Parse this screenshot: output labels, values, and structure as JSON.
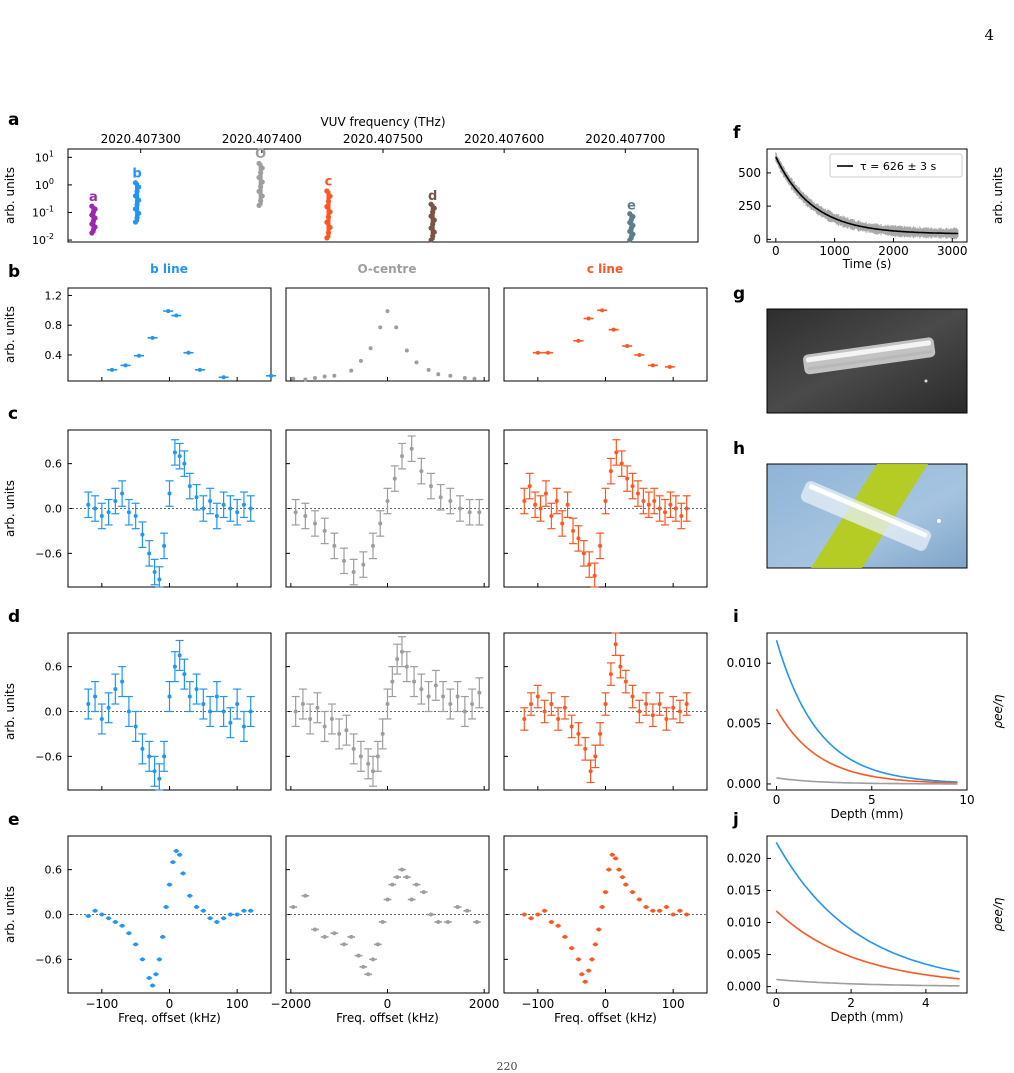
{
  "page": {
    "number": "4",
    "footer": "220"
  },
  "colors": {
    "b": "#2196F3",
    "O": "#9E9E9E",
    "c": "#FF5722",
    "a": "#9C27B0",
    "d": "#795548",
    "e": "#607D8B",
    "fit": "#000000",
    "photo_dark": "#3a3a3a"
  },
  "panel_letters": {
    "a": "a",
    "b": "b",
    "c": "c",
    "d": "d",
    "e": "e",
    "f": "f",
    "g": "g",
    "h": "h",
    "i": "i",
    "j": "j"
  },
  "column_titles": [
    "b line",
    "O-centre",
    "c line"
  ],
  "chart_data": [
    {
      "id": "a",
      "type": "scatter",
      "xlabel": "VUV frequency (THz)",
      "ylabel": "arb. units",
      "yscale": "log",
      "xlim": [
        2020.40724,
        2020.40776
      ],
      "ylim": [
        0.0085,
        20
      ],
      "xticks": [
        "2020.407300",
        "2020.407400",
        "2020.407500",
        "2020.407600",
        "2020.407700"
      ],
      "xtick_values": [
        2020.4073,
        2020.4074,
        2020.4075,
        2020.4076,
        2020.4077
      ],
      "yticks": [
        "10^{-2}",
        "10^{-1}",
        "10^{0}",
        "10^{1}"
      ],
      "ytick_values": [
        0.01,
        0.1,
        1,
        10
      ],
      "series": [
        {
          "name": "a",
          "color": "a",
          "x": 2020.407261,
          "lo": 0.018,
          "hi": 0.17,
          "label_at": 0.22
        },
        {
          "name": "b",
          "color": "b",
          "x": 2020.407297,
          "lo": 0.045,
          "hi": 1.2,
          "label_at": 1.6
        },
        {
          "name": "O",
          "color": "O",
          "x": 2020.407399,
          "lo": 0.18,
          "hi": 6.0,
          "label_at": 8.0
        },
        {
          "name": "c",
          "color": "c",
          "x": 2020.407455,
          "lo": 0.012,
          "hi": 0.6,
          "label_at": 0.8
        },
        {
          "name": "d",
          "color": "d",
          "x": 2020.407541,
          "lo": 0.01,
          "hi": 0.2,
          "label_at": 0.24
        },
        {
          "name": "e",
          "color": "e",
          "x": 2020.407705,
          "lo": 0.01,
          "hi": 0.09,
          "label_at": 0.11
        }
      ]
    },
    {
      "id": "b-b",
      "type": "scatter",
      "color": "b",
      "ylabel": "arb. units",
      "xlim": [
        -150,
        150
      ],
      "ylim": [
        0.05,
        1.3
      ],
      "yticks": [
        "0.4",
        "0.8",
        "1.2"
      ],
      "ytick_values": [
        0.4,
        0.8,
        1.2
      ],
      "x": [
        -85,
        -65,
        -45,
        -25,
        -2,
        10,
        28,
        45,
        80,
        150
      ],
      "y": [
        0.2,
        0.26,
        0.39,
        0.63,
        0.99,
        0.93,
        0.43,
        0.2,
        0.1,
        0.12
      ]
    },
    {
      "id": "b-O",
      "type": "scatter",
      "color": "O",
      "xlim": [
        -2100,
        2100
      ],
      "ylim": [
        0.05,
        1.3
      ],
      "x": [
        -1950,
        -1700,
        -1500,
        -1300,
        -1100,
        -750,
        -550,
        -350,
        -150,
        0,
        180,
        400,
        600,
        850,
        1050,
        1300,
        1600,
        1800
      ],
      "y": [
        0.08,
        0.07,
        0.09,
        0.11,
        0.12,
        0.19,
        0.32,
        0.49,
        0.77,
        0.99,
        0.77,
        0.46,
        0.3,
        0.2,
        0.14,
        0.12,
        0.09,
        0.08
      ]
    },
    {
      "id": "b-c",
      "type": "scatter",
      "color": "c",
      "xlim": [
        -150,
        150
      ],
      "ylim": [
        0.05,
        1.3
      ],
      "x": [
        -100,
        -85,
        -40,
        -25,
        -5,
        12,
        32,
        50,
        70,
        95
      ],
      "y": [
        0.43,
        0.43,
        0.59,
        0.89,
        1.0,
        0.74,
        0.52,
        0.4,
        0.26,
        0.24
      ]
    },
    {
      "id": "c-b",
      "type": "errorbar",
      "color": "b",
      "ylabel": "arb. units",
      "xlim": [
        -150,
        150
      ],
      "ylim": [
        -1.05,
        1.05
      ],
      "yticks": [
        "−0.6",
        "0.0",
        "0.6"
      ],
      "ytick_values": [
        -0.6,
        0,
        0.6
      ],
      "x": [
        -120,
        -110,
        -100,
        -90,
        -80,
        -70,
        -60,
        -50,
        -40,
        -30,
        -22,
        -15,
        -8,
        0,
        8,
        15,
        22,
        30,
        40,
        50,
        60,
        70,
        80,
        90,
        100,
        110,
        120
      ],
      "y": [
        0.05,
        0.0,
        -0.1,
        -0.05,
        0.1,
        0.2,
        -0.05,
        -0.1,
        -0.35,
        -0.6,
        -0.85,
        -0.95,
        -0.5,
        0.2,
        0.75,
        0.7,
        0.6,
        0.3,
        0.15,
        0.0,
        0.1,
        -0.1,
        0.05,
        0.0,
        -0.05,
        0.05,
        0.0
      ],
      "err": [
        0.17,
        0.17,
        0.17,
        0.17,
        0.17,
        0.17,
        0.17,
        0.17,
        0.17,
        0.17,
        0.17,
        0.17,
        0.17,
        0.17,
        0.17,
        0.17,
        0.17,
        0.17,
        0.17,
        0.17,
        0.17,
        0.17,
        0.17,
        0.17,
        0.17,
        0.17,
        0.17
      ]
    },
    {
      "id": "c-O",
      "type": "errorbar",
      "color": "O",
      "xlim": [
        -2100,
        2100
      ],
      "ylim": [
        -1.05,
        1.05
      ],
      "x": [
        -1900,
        -1700,
        -1500,
        -1300,
        -1100,
        -900,
        -700,
        -500,
        -300,
        -150,
        0,
        150,
        300,
        500,
        700,
        900,
        1100,
        1300,
        1500,
        1700,
        1900
      ],
      "y": [
        -0.05,
        -0.1,
        -0.2,
        -0.3,
        -0.5,
        -0.7,
        -0.85,
        -0.75,
        -0.5,
        -0.2,
        0.1,
        0.4,
        0.7,
        0.8,
        0.5,
        0.3,
        0.15,
        0.1,
        0.0,
        -0.05,
        -0.05
      ],
      "err": [
        0.17,
        0.17,
        0.17,
        0.17,
        0.17,
        0.17,
        0.17,
        0.17,
        0.17,
        0.17,
        0.17,
        0.17,
        0.17,
        0.17,
        0.17,
        0.17,
        0.17,
        0.17,
        0.17,
        0.17,
        0.17
      ]
    },
    {
      "id": "c-c",
      "type": "errorbar",
      "color": "c",
      "xlim": [
        -150,
        150
      ],
      "ylim": [
        -1.05,
        1.05
      ],
      "x": [
        -120,
        -112,
        -104,
        -96,
        -88,
        -80,
        -72,
        -64,
        -56,
        -48,
        -40,
        -32,
        -24,
        -16,
        -8,
        0,
        8,
        16,
        24,
        32,
        40,
        48,
        56,
        64,
        72,
        80,
        88,
        96,
        104,
        112,
        120
      ],
      "y": [
        0.1,
        0.3,
        0.05,
        0.0,
        0.2,
        -0.1,
        0.1,
        -0.2,
        0.05,
        -0.3,
        -0.4,
        -0.6,
        -0.75,
        -0.9,
        -0.5,
        0.1,
        0.5,
        0.75,
        0.6,
        0.4,
        0.3,
        0.2,
        0.1,
        0.05,
        0.1,
        0.0,
        -0.05,
        0.05,
        0.0,
        -0.1,
        0.0
      ],
      "err": [
        0.17,
        0.17,
        0.17,
        0.17,
        0.17,
        0.17,
        0.17,
        0.17,
        0.17,
        0.17,
        0.17,
        0.17,
        0.17,
        0.17,
        0.17,
        0.17,
        0.17,
        0.17,
        0.17,
        0.17,
        0.17,
        0.17,
        0.17,
        0.17,
        0.17,
        0.17,
        0.17,
        0.17,
        0.17,
        0.17,
        0.17
      ]
    },
    {
      "id": "d-b",
      "type": "errorbar",
      "color": "b",
      "ylabel": "arb. units",
      "xlim": [
        -150,
        150
      ],
      "ylim": [
        -1.05,
        1.05
      ],
      "yticks": [
        "−0.6",
        "0.0",
        "0.6"
      ],
      "ytick_values": [
        -0.6,
        0,
        0.6
      ],
      "x": [
        -120,
        -110,
        -100,
        -90,
        -80,
        -70,
        -60,
        -50,
        -40,
        -30,
        -22,
        -15,
        -8,
        0,
        8,
        15,
        22,
        30,
        40,
        50,
        60,
        70,
        80,
        90,
        100,
        110,
        120
      ],
      "y": [
        0.1,
        0.2,
        -0.1,
        0.05,
        0.3,
        0.4,
        0.0,
        -0.2,
        -0.5,
        -0.6,
        -0.8,
        -0.9,
        -0.6,
        0.2,
        0.6,
        0.75,
        0.5,
        0.2,
        0.3,
        0.1,
        0.0,
        0.2,
        0.0,
        -0.15,
        0.1,
        -0.2,
        0.0
      ],
      "err": [
        0.2,
        0.2,
        0.2,
        0.2,
        0.2,
        0.2,
        0.2,
        0.2,
        0.2,
        0.2,
        0.2,
        0.2,
        0.2,
        0.2,
        0.2,
        0.2,
        0.2,
        0.2,
        0.2,
        0.2,
        0.2,
        0.2,
        0.2,
        0.2,
        0.2,
        0.2,
        0.2
      ]
    },
    {
      "id": "d-O",
      "type": "errorbar",
      "color": "O",
      "xlim": [
        -2100,
        2100
      ],
      "ylim": [
        -1.05,
        1.05
      ],
      "x": [
        -1900,
        -1750,
        -1600,
        -1450,
        -1300,
        -1150,
        -1000,
        -850,
        -700,
        -550,
        -400,
        -300,
        -200,
        -100,
        0,
        100,
        200,
        300,
        400,
        550,
        700,
        850,
        1000,
        1150,
        1300,
        1450,
        1600,
        1750,
        1900
      ],
      "y": [
        0.0,
        0.1,
        -0.1,
        0.05,
        -0.2,
        -0.1,
        -0.3,
        -0.25,
        -0.5,
        -0.6,
        -0.7,
        -0.8,
        -0.6,
        -0.3,
        0.1,
        0.4,
        0.7,
        0.8,
        0.6,
        0.4,
        0.3,
        0.2,
        0.35,
        0.2,
        0.1,
        0.2,
        0.0,
        0.1,
        0.25
      ],
      "err": [
        0.2,
        0.2,
        0.2,
        0.2,
        0.2,
        0.2,
        0.2,
        0.2,
        0.2,
        0.2,
        0.2,
        0.2,
        0.2,
        0.2,
        0.2,
        0.2,
        0.2,
        0.2,
        0.2,
        0.2,
        0.2,
        0.2,
        0.2,
        0.2,
        0.2,
        0.2,
        0.2,
        0.2,
        0.2
      ]
    },
    {
      "id": "d-c",
      "type": "errorbar",
      "color": "c",
      "xlim": [
        -150,
        150
      ],
      "ylim": [
        -1.05,
        1.05
      ],
      "x": [
        -120,
        -110,
        -100,
        -90,
        -80,
        -70,
        -60,
        -50,
        -40,
        -30,
        -22,
        -15,
        -8,
        0,
        8,
        15,
        22,
        30,
        40,
        50,
        60,
        70,
        80,
        90,
        100,
        110,
        120
      ],
      "y": [
        -0.1,
        0.1,
        0.2,
        0.0,
        0.1,
        -0.1,
        0.05,
        -0.2,
        -0.3,
        -0.5,
        -0.8,
        -0.6,
        -0.3,
        0.1,
        0.5,
        0.9,
        0.6,
        0.4,
        0.2,
        0.0,
        0.1,
        -0.05,
        0.1,
        -0.1,
        0.05,
        0.0,
        0.1
      ],
      "err": [
        0.15,
        0.15,
        0.15,
        0.15,
        0.15,
        0.15,
        0.15,
        0.15,
        0.15,
        0.15,
        0.15,
        0.15,
        0.15,
        0.15,
        0.15,
        0.15,
        0.15,
        0.15,
        0.15,
        0.15,
        0.15,
        0.15,
        0.15,
        0.15,
        0.15,
        0.15,
        0.15
      ]
    },
    {
      "id": "e-b",
      "type": "scatter-xerr",
      "color": "b",
      "ylabel": "arb. units",
      "xlabel": "Freq. offset (kHz)",
      "xlim": [
        -150,
        150
      ],
      "ylim": [
        -1.05,
        1.05
      ],
      "xticks": [
        "−100",
        "0",
        "100"
      ],
      "xtick_values": [
        -100,
        0,
        100
      ],
      "yticks": [
        "−0.6",
        "0.0",
        "0.6"
      ],
      "ytick_values": [
        -0.6,
        0,
        0.6
      ],
      "x": [
        -120,
        -110,
        -100,
        -90,
        -80,
        -70,
        -60,
        -50,
        -40,
        -30,
        -25,
        -20,
        -15,
        -10,
        -5,
        0,
        5,
        10,
        15,
        20,
        30,
        40,
        50,
        60,
        70,
        80,
        90,
        100,
        110,
        120
      ],
      "y": [
        -0.02,
        0.05,
        0.0,
        -0.05,
        -0.1,
        -0.15,
        -0.25,
        -0.4,
        -0.6,
        -0.85,
        -0.95,
        -0.8,
        -0.6,
        -0.3,
        0.1,
        0.4,
        0.7,
        0.85,
        0.8,
        0.55,
        0.25,
        0.1,
        0.05,
        -0.05,
        -0.1,
        -0.05,
        0.0,
        0.0,
        0.05,
        0.05
      ],
      "xerr": 4
    },
    {
      "id": "e-O",
      "type": "scatter-xerr",
      "color": "O",
      "xlabel": "Freq. offset (kHz)",
      "xlim": [
        -2100,
        2100
      ],
      "ylim": [
        -1.05,
        1.05
      ],
      "xticks": [
        "−2000",
        "0",
        "2000"
      ],
      "xtick_values": [
        -2000,
        0,
        2000
      ],
      "x": [
        -1950,
        -1700,
        -1500,
        -1300,
        -1100,
        -900,
        -750,
        -600,
        -500,
        -400,
        -300,
        -200,
        -100,
        0,
        100,
        200,
        300,
        400,
        500,
        600,
        750,
        900,
        1050,
        1250,
        1450,
        1650,
        1850
      ],
      "y": [
        0.1,
        0.25,
        -0.2,
        -0.3,
        -0.25,
        -0.4,
        -0.3,
        -0.55,
        -0.7,
        -0.8,
        -0.6,
        -0.4,
        -0.1,
        0.2,
        0.4,
        0.5,
        0.6,
        0.5,
        0.2,
        0.4,
        0.3,
        0.0,
        -0.1,
        -0.1,
        0.1,
        0.05,
        -0.1
      ],
      "xerr": 80
    },
    {
      "id": "e-c",
      "type": "scatter-xerr",
      "color": "c",
      "xlabel": "Freq. offset (kHz)",
      "xlim": [
        -150,
        150
      ],
      "ylim": [
        -1.05,
        1.05
      ],
      "xticks": [
        "−100",
        "0",
        "100"
      ],
      "xtick_values": [
        -100,
        0,
        100
      ],
      "x": [
        -120,
        -110,
        -100,
        -90,
        -80,
        -70,
        -60,
        -50,
        -40,
        -35,
        -30,
        -25,
        -20,
        -15,
        -10,
        -5,
        0,
        5,
        10,
        15,
        20,
        25,
        30,
        40,
        50,
        60,
        70,
        80,
        90,
        100,
        110,
        120
      ],
      "y": [
        0.0,
        -0.05,
        0.0,
        0.05,
        -0.1,
        -0.15,
        -0.3,
        -0.45,
        -0.6,
        -0.8,
        -0.9,
        -0.75,
        -0.6,
        -0.4,
        -0.2,
        0.1,
        0.3,
        0.6,
        0.8,
        0.75,
        0.6,
        0.5,
        0.4,
        0.3,
        0.2,
        0.1,
        0.05,
        0.05,
        0.1,
        0.0,
        0.05,
        0.0
      ],
      "xerr": 4
    },
    {
      "id": "f",
      "type": "line",
      "xlabel": "Time (s)",
      "ylabel": "arb. units",
      "xlim": [
        -150,
        3250
      ],
      "ylim": [
        -20,
        680
      ],
      "xticks": [
        "0",
        "1000",
        "2000",
        "3000"
      ],
      "xtick_values": [
        0,
        1000,
        2000,
        3000
      ],
      "yticks": [
        "0",
        "250",
        "500"
      ],
      "ytick_values": [
        0,
        250,
        500
      ],
      "fit": {
        "A": 580,
        "tau": 626,
        "offset": 40
      },
      "legend": "τ = 626 ± 3 s"
    },
    {
      "id": "i",
      "type": "line",
      "xlabel": "Depth (mm)",
      "ylabel": "ρee/η",
      "xlim": [
        -0.5,
        10
      ],
      "ylim": [
        -0.0005,
        0.0125
      ],
      "xticks": [
        "0",
        "5",
        "10"
      ],
      "xtick_values": [
        0,
        5,
        10
      ],
      "yticks": [
        "0.000",
        "0.005",
        "0.010"
      ],
      "ytick_values": [
        0,
        0.005,
        0.01
      ],
      "series": [
        {
          "color": "b",
          "amp": 0.0119,
          "decay": 2.2,
          "xmax": 9.5
        },
        {
          "color": "c",
          "amp": 0.0062,
          "decay": 2.2,
          "xmax": 9.5
        },
        {
          "color": "O",
          "amp": 0.0005,
          "decay": 2.2,
          "xmax": 9.5
        }
      ]
    },
    {
      "id": "j",
      "type": "line",
      "xlabel": "Depth (mm)",
      "ylabel": "ρee/η",
      "xlim": [
        -0.25,
        5.1
      ],
      "ylim": [
        -0.001,
        0.0235
      ],
      "xticks": [
        "0",
        "2",
        "4"
      ],
      "xtick_values": [
        0,
        2,
        4
      ],
      "yticks": [
        "0.000",
        "0.005",
        "0.010",
        "0.015",
        "0.020"
      ],
      "ytick_values": [
        0,
        0.005,
        0.01,
        0.015,
        0.02
      ],
      "series": [
        {
          "color": "b",
          "amp": 0.0225,
          "decay": 2.15,
          "xmax": 4.9
        },
        {
          "color": "c",
          "amp": 0.0118,
          "decay": 2.15,
          "xmax": 4.9
        },
        {
          "color": "O",
          "amp": 0.0011,
          "decay": 2.15,
          "xmax": 4.9
        }
      ]
    }
  ]
}
